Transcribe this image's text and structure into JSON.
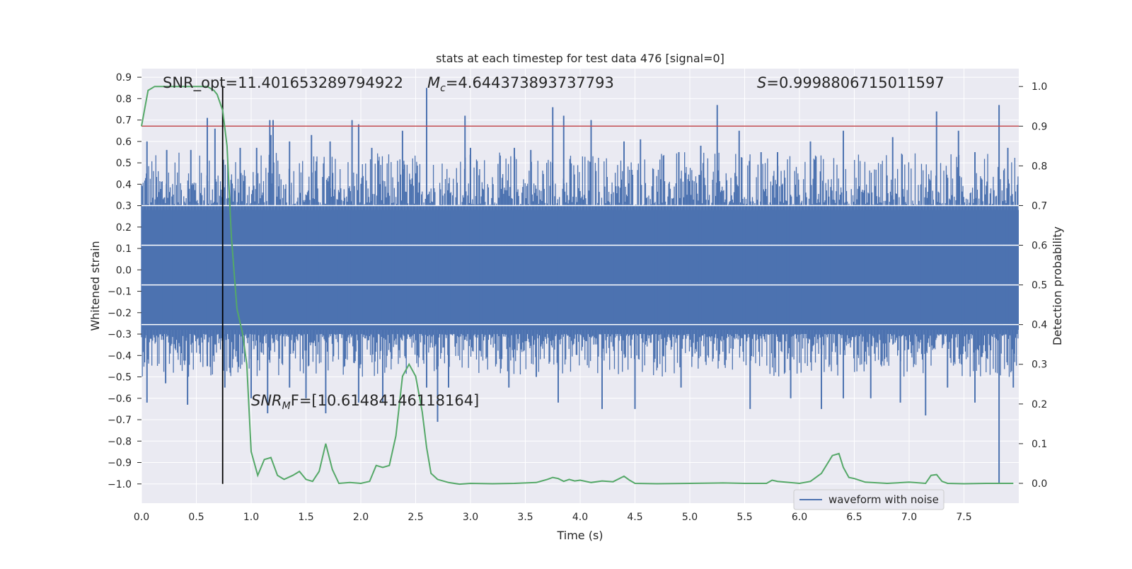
{
  "chart_data": {
    "type": "line",
    "title": "stats at each timestep for test data 476 [signal=0]",
    "xlabel": "Time (s)",
    "ylabel_left": "Whitened strain",
    "ylabel_right": "Detection probability",
    "xlim": [
      0.0,
      8.0
    ],
    "ylim_left": [
      -1.09,
      0.94
    ],
    "ylim_right": [
      -0.05,
      1.045
    ],
    "x_ticks": [
      "0.0",
      "0.5",
      "1.0",
      "1.5",
      "2.0",
      "2.5",
      "3.0",
      "3.5",
      "4.0",
      "4.5",
      "5.0",
      "5.5",
      "6.0",
      "6.5",
      "7.0",
      "7.5"
    ],
    "y_ticks_left": [
      "0.9",
      "0.8",
      "0.7",
      "0.6",
      "0.5",
      "0.4",
      "0.3",
      "0.2",
      "0.1",
      "0.0",
      "-0.1",
      "-0.2",
      "-0.3",
      "-0.4",
      "-0.5",
      "-0.6",
      "-0.7",
      "-0.8",
      "-0.9",
      "-1.0"
    ],
    "y_ticks_right": [
      "1.0",
      "0.9",
      "0.8",
      "0.7",
      "0.6",
      "0.5",
      "0.4",
      "0.3",
      "0.2",
      "0.1",
      "0.0"
    ],
    "grid": true,
    "legend": {
      "position": "lower-right",
      "entries": [
        "waveform with noise"
      ]
    },
    "annotations": {
      "snr_opt": "SNR_opt=11.401653289794922",
      "mc_symbol": "M",
      "mc_sub": "c",
      "mc_value": "=4.644373893737793",
      "s_symbol": "S",
      "s_value": "=0.9998806715011597",
      "snr_mf_symbol": "SNR",
      "snr_mf_sub": "M",
      "snr_mf_value": "F=[10.61484146118164]"
    },
    "threshold_line": {
      "y_right": 0.9,
      "color": "#c44e52"
    },
    "vertical_marker": {
      "x": 0.74,
      "y_left_from": -1.0,
      "y_left_to": 0.86,
      "color": "#000000"
    },
    "waveform": {
      "name": "waveform with noise",
      "color": "#4c72b0",
      "band_low": -0.28,
      "band_high": 0.28,
      "spikes_up": [
        [
          0.05,
          0.6
        ],
        [
          0.23,
          0.56
        ],
        [
          0.45,
          0.56
        ],
        [
          0.6,
          0.71
        ],
        [
          0.67,
          0.66
        ],
        [
          0.9,
          0.57
        ],
        [
          1.05,
          0.57
        ],
        [
          1.17,
          0.7
        ],
        [
          1.18,
          0.63
        ],
        [
          1.2,
          0.7
        ],
        [
          1.35,
          0.6
        ],
        [
          1.55,
          0.63
        ],
        [
          1.72,
          0.6
        ],
        [
          1.92,
          0.7
        ],
        [
          1.98,
          0.68
        ],
        [
          2.1,
          0.57
        ],
        [
          2.38,
          0.65
        ],
        [
          2.6,
          0.85
        ],
        [
          2.95,
          0.72
        ],
        [
          3.0,
          0.57
        ],
        [
          3.4,
          0.57
        ],
        [
          3.55,
          0.56
        ],
        [
          3.75,
          0.76
        ],
        [
          3.85,
          0.72
        ],
        [
          4.1,
          0.7
        ],
        [
          4.4,
          0.6
        ],
        [
          4.55,
          0.61
        ],
        [
          4.9,
          0.55
        ],
        [
          5.1,
          0.58
        ],
        [
          5.25,
          0.77
        ],
        [
          5.45,
          0.65
        ],
        [
          5.65,
          0.55
        ],
        [
          5.8,
          0.55
        ],
        [
          6.1,
          0.6
        ],
        [
          6.4,
          0.65
        ],
        [
          6.85,
          0.62
        ],
        [
          7.25,
          0.74
        ],
        [
          7.45,
          0.65
        ],
        [
          7.6,
          0.55
        ],
        [
          7.82,
          0.77
        ],
        [
          7.9,
          0.57
        ]
      ],
      "spikes_down": [
        [
          0.05,
          -0.62
        ],
        [
          0.22,
          -0.53
        ],
        [
          0.42,
          -0.63
        ],
        [
          0.6,
          -0.45
        ],
        [
          0.76,
          -0.55
        ],
        [
          1.0,
          -0.6
        ],
        [
          1.15,
          -0.67
        ],
        [
          1.35,
          -0.55
        ],
        [
          1.5,
          -0.6
        ],
        [
          1.68,
          -0.67
        ],
        [
          1.98,
          -0.62
        ],
        [
          2.2,
          -0.62
        ],
        [
          2.6,
          -0.55
        ],
        [
          2.7,
          -0.71
        ],
        [
          2.8,
          -0.55
        ],
        [
          3.35,
          -0.55
        ],
        [
          3.6,
          -0.5
        ],
        [
          3.8,
          -0.62
        ],
        [
          4.2,
          -0.65
        ],
        [
          4.5,
          -0.65
        ],
        [
          4.92,
          -0.55
        ],
        [
          5.55,
          -0.65
        ],
        [
          5.92,
          -0.6
        ],
        [
          6.2,
          -0.65
        ],
        [
          6.4,
          -0.6
        ],
        [
          6.65,
          -0.6
        ],
        [
          6.92,
          -0.62
        ],
        [
          7.15,
          -0.68
        ],
        [
          7.35,
          -0.55
        ],
        [
          7.6,
          -0.62
        ],
        [
          7.82,
          -1.0
        ],
        [
          7.95,
          -0.55
        ]
      ]
    },
    "probability": {
      "name": "Detection probability",
      "color": "#55a868",
      "x": [
        0.0,
        0.06,
        0.12,
        0.2,
        0.3,
        0.4,
        0.5,
        0.6,
        0.66,
        0.69,
        0.74,
        0.78,
        0.82,
        0.87,
        0.92,
        0.96,
        1.0,
        1.06,
        1.12,
        1.18,
        1.24,
        1.3,
        1.38,
        1.44,
        1.5,
        1.56,
        1.62,
        1.68,
        1.74,
        1.8,
        1.9,
        2.0,
        2.08,
        2.14,
        2.2,
        2.26,
        2.32,
        2.38,
        2.44,
        2.5,
        2.56,
        2.6,
        2.64,
        2.7,
        2.8,
        2.9,
        3.0,
        3.2,
        3.4,
        3.6,
        3.7,
        3.75,
        3.8,
        3.85,
        3.9,
        3.95,
        4.0,
        4.1,
        4.2,
        4.3,
        4.4,
        4.45,
        4.5,
        4.7,
        5.0,
        5.3,
        5.5,
        5.7,
        5.75,
        5.8,
        6.0,
        6.1,
        6.2,
        6.3,
        6.36,
        6.4,
        6.45,
        6.5,
        6.6,
        6.8,
        7.0,
        7.15,
        7.2,
        7.25,
        7.3,
        7.35,
        7.5,
        7.7,
        7.85,
        7.95
      ],
      "y": [
        0.9,
        0.99,
        1.0,
        1.0,
        1.0,
        1.0,
        1.0,
        1.0,
        0.99,
        0.98,
        0.94,
        0.85,
        0.62,
        0.44,
        0.38,
        0.3,
        0.08,
        0.02,
        0.06,
        0.065,
        0.02,
        0.01,
        0.02,
        0.03,
        0.01,
        0.005,
        0.03,
        0.1,
        0.035,
        0.0,
        0.002,
        0.0,
        0.005,
        0.045,
        0.04,
        0.045,
        0.12,
        0.27,
        0.3,
        0.27,
        0.18,
        0.09,
        0.025,
        0.01,
        0.002,
        -0.002,
        0.0,
        -0.001,
        0.0,
        0.002,
        0.01,
        0.015,
        0.012,
        0.005,
        0.01,
        0.006,
        0.008,
        0.002,
        0.006,
        0.004,
        0.018,
        0.008,
        0.0,
        -0.001,
        0.0,
        0.001,
        0.0,
        0.0,
        0.008,
        0.005,
        0.0,
        0.005,
        0.025,
        0.07,
        0.075,
        0.04,
        0.015,
        0.012,
        0.003,
        0.0,
        0.003,
        0.0,
        0.02,
        0.022,
        0.005,
        0.0,
        -0.001,
        0.0,
        0.0,
        0.0
      ]
    }
  }
}
